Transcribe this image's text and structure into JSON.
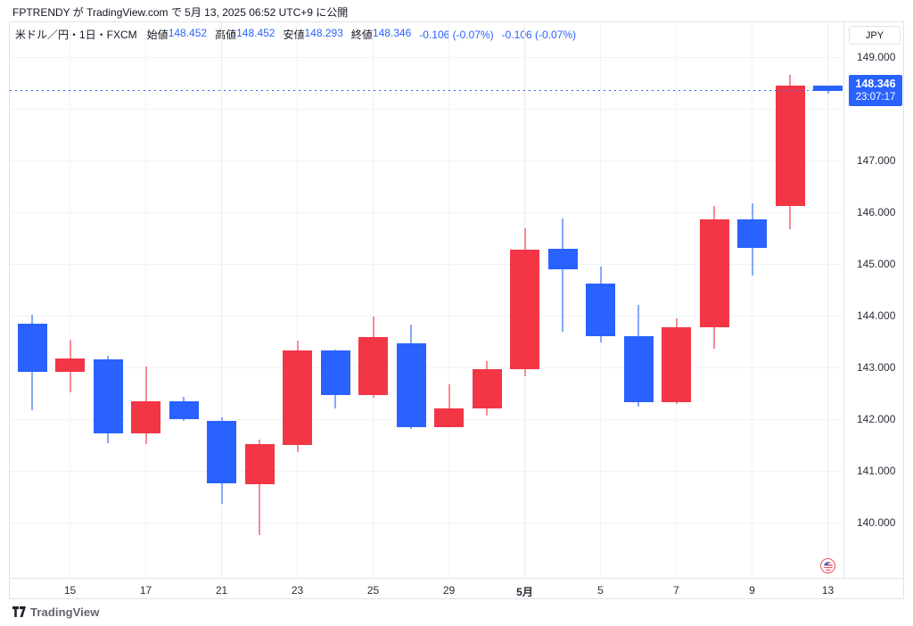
{
  "attribution": "FPTRENDY が TradingView.com で 5月 13, 2025 06:52 UTC+9 に公開",
  "legend": {
    "symbol_title": "米ドル／円・1日・FXCM",
    "fields": [
      {
        "label": "始値",
        "value": "148.452"
      },
      {
        "label": "高値",
        "value": "148.452"
      },
      {
        "label": "安値",
        "value": "148.293"
      },
      {
        "label": "終値",
        "value": "148.346"
      }
    ],
    "changes": [
      "-0.106 (-0.07%)",
      "-0.106 (-0.07%)"
    ]
  },
  "price_axis": {
    "currency_button": "JPY",
    "ticks": [
      {
        "text": "149.000",
        "price": 149
      },
      {
        "text": "147.000",
        "price": 147
      },
      {
        "text": "146.000",
        "price": 146
      },
      {
        "text": "145.000",
        "price": 145
      },
      {
        "text": "144.000",
        "price": 144
      },
      {
        "text": "143.000",
        "price": 143
      },
      {
        "text": "142.000",
        "price": 142
      },
      {
        "text": "141.000",
        "price": 141
      },
      {
        "text": "140.000",
        "price": 140
      }
    ],
    "grid_prices": [
      149,
      148,
      147,
      146,
      145,
      144,
      143,
      142,
      141,
      140
    ],
    "last_price": {
      "value": "148.346",
      "countdown": "23:07:17"
    }
  },
  "time_axis": {
    "labels": [
      {
        "text": "15",
        "ci": 1
      },
      {
        "text": "17",
        "ci": 3
      },
      {
        "text": "21",
        "ci": 5,
        "accent": true
      },
      {
        "text": "23",
        "ci": 7
      },
      {
        "text": "25",
        "ci": 9
      },
      {
        "text": "29",
        "ci": 11
      },
      {
        "text": "5月",
        "ci": 13,
        "bold": true,
        "accent": true
      },
      {
        "text": "5",
        "ci": 15
      },
      {
        "text": "7",
        "ci": 17
      },
      {
        "text": "9",
        "ci": 19
      },
      {
        "text": "13",
        "ci": 21,
        "accent": true
      }
    ]
  },
  "event_marker": {
    "type": "us-flag",
    "candle_index": 21
  },
  "logo_text": "TradingView",
  "colors": {
    "up": "#F23645",
    "down": "#2962FF",
    "accent_blue": "#2962FF",
    "grid": "#F0F3FA",
    "grid_accent": "#F7E5E9",
    "border": "#E0E3EB",
    "text": "#131722"
  },
  "chart_data": {
    "type": "candlestick",
    "title": "米ドル／円・1日・FXCM",
    "symbol": "USD/JPY",
    "exchange": "FXCM",
    "interval": "1日",
    "up_color_meaning": "red = bullish (Japanese convention), blue = bearish",
    "visible_price_range": [
      138.9,
      149.6
    ],
    "last_price": 148.346,
    "candles": [
      {
        "date": "4/14",
        "o": 143.85,
        "h": 144.03,
        "l": 142.19,
        "c": 142.93
      },
      {
        "date": "4/15",
        "o": 142.93,
        "h": 143.54,
        "l": 142.53,
        "c": 143.19
      },
      {
        "date": "4/16",
        "o": 143.17,
        "h": 143.24,
        "l": 141.55,
        "c": 141.74
      },
      {
        "date": "4/17",
        "o": 141.74,
        "h": 143.03,
        "l": 141.53,
        "c": 142.36
      },
      {
        "date": "4/18",
        "o": 142.36,
        "h": 142.45,
        "l": 141.97,
        "c": 142.02
      },
      {
        "date": "4/21",
        "o": 141.97,
        "h": 142.05,
        "l": 140.38,
        "c": 140.77
      },
      {
        "date": "4/22",
        "o": 140.76,
        "h": 141.62,
        "l": 139.78,
        "c": 141.53
      },
      {
        "date": "4/23",
        "o": 141.51,
        "h": 143.52,
        "l": 141.37,
        "c": 143.33
      },
      {
        "date": "4/24",
        "o": 143.33,
        "h": 143.35,
        "l": 142.22,
        "c": 142.48
      },
      {
        "date": "4/25",
        "o": 142.48,
        "h": 143.99,
        "l": 142.43,
        "c": 143.59
      },
      {
        "date": "4/28",
        "o": 143.47,
        "h": 143.83,
        "l": 141.82,
        "c": 141.86
      },
      {
        "date": "4/29",
        "o": 141.86,
        "h": 142.69,
        "l": 141.86,
        "c": 142.22
      },
      {
        "date": "4/30",
        "o": 142.22,
        "h": 143.13,
        "l": 142.08,
        "c": 142.98
      },
      {
        "date": "5/1",
        "o": 142.98,
        "h": 145.7,
        "l": 142.83,
        "c": 145.28
      },
      {
        "date": "5/2",
        "o": 145.3,
        "h": 145.88,
        "l": 143.7,
        "c": 144.9
      },
      {
        "date": "5/5",
        "o": 144.63,
        "h": 144.95,
        "l": 143.49,
        "c": 143.62
      },
      {
        "date": "5/6",
        "o": 143.62,
        "h": 144.22,
        "l": 142.26,
        "c": 142.34
      },
      {
        "date": "5/7",
        "o": 142.34,
        "h": 143.95,
        "l": 142.3,
        "c": 143.78
      },
      {
        "date": "5/8",
        "o": 143.78,
        "h": 146.13,
        "l": 143.38,
        "c": 145.86
      },
      {
        "date": "5/9",
        "o": 145.86,
        "h": 146.17,
        "l": 144.78,
        "c": 145.31
      },
      {
        "date": "5/12",
        "o": 146.12,
        "h": 148.66,
        "l": 145.68,
        "c": 148.45
      },
      {
        "date": "5/13",
        "o": 148.452,
        "h": 148.452,
        "l": 148.293,
        "c": 148.346
      }
    ]
  }
}
